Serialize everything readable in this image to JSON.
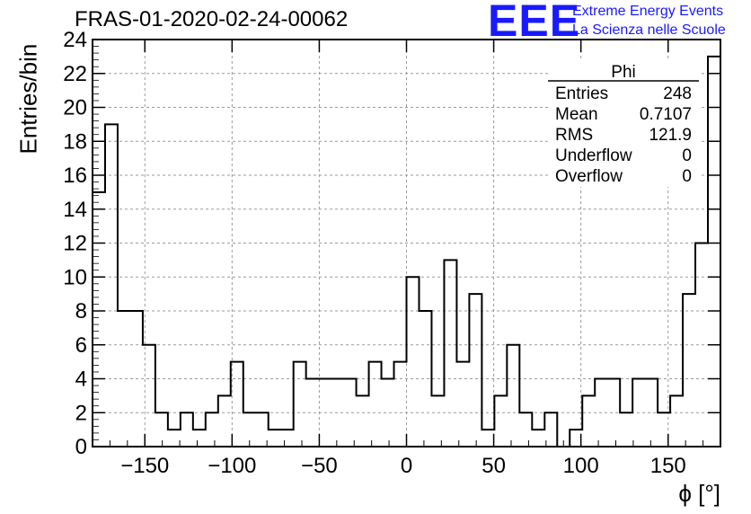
{
  "title": "FRAS-01-2020-02-24-00062",
  "logo": {
    "mark": "EEE",
    "line1": "Extreme Energy Events",
    "line2": "La Scienza nelle Scuole",
    "color": "#1a1aff"
  },
  "stats_box": {
    "name": "Phi",
    "rows": [
      {
        "label": "Entries",
        "value": "248"
      },
      {
        "label": "Mean",
        "value": "0.7107"
      },
      {
        "label": "RMS",
        "value": "121.9"
      },
      {
        "label": "Underflow",
        "value": "0"
      },
      {
        "label": "Overflow",
        "value": "0"
      }
    ]
  },
  "chart_data": {
    "type": "histogram",
    "xlabel": "ϕ [°]",
    "ylabel": "Entries/bin",
    "xlim": [
      -180,
      180
    ],
    "ylim": [
      0,
      24
    ],
    "bin_width": 7.2,
    "bin_start": -180,
    "values": [
      15,
      19,
      8,
      8,
      6,
      2,
      1,
      2,
      1,
      2,
      3,
      5,
      2,
      2,
      1,
      1,
      5,
      4,
      4,
      4,
      4,
      3,
      5,
      4,
      5,
      10,
      8,
      3,
      11,
      5,
      9,
      1,
      3,
      6,
      2,
      1,
      2,
      0,
      1,
      3,
      4,
      4,
      2,
      4,
      4,
      2,
      3,
      9,
      12,
      23
    ],
    "xticks": [
      -150,
      -100,
      -50,
      0,
      50,
      100,
      150
    ],
    "xtick_labels": [
      "−150",
      "−100",
      "−50",
      "0",
      "50",
      "100",
      "150"
    ],
    "yticks": [
      0,
      2,
      4,
      6,
      8,
      10,
      12,
      14,
      16,
      18,
      20,
      22,
      24
    ],
    "yticks_labels": [
      "0",
      "2",
      "4",
      "6",
      "8",
      "10",
      "12",
      "14",
      "16",
      "18",
      "20",
      "22",
      "24"
    ],
    "grid": true
  }
}
